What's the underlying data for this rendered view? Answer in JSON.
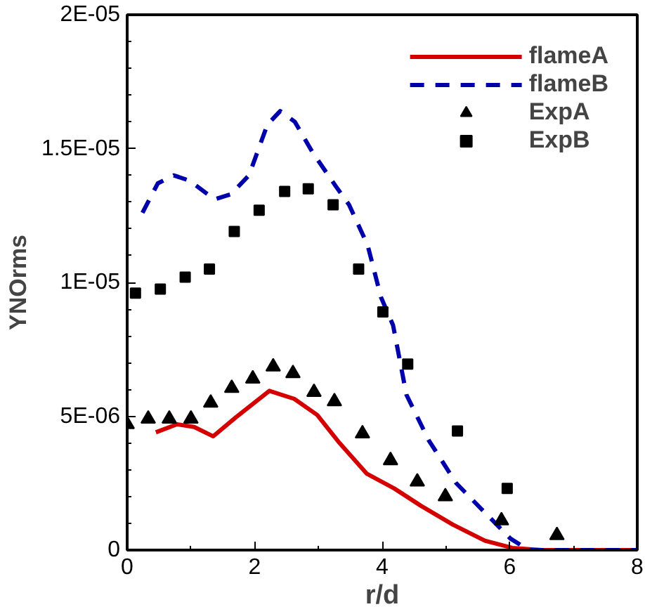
{
  "chart_data": {
    "type": "line",
    "xlabel": "r/d",
    "ylabel": "YNOrms",
    "xlim": [
      0,
      8
    ],
    "ylim": [
      0,
      2e-05
    ],
    "xticks": [
      0,
      {
        "value": 1,
        "label": null
      },
      2,
      {
        "value": 3,
        "label": null
      },
      4,
      {
        "value": 5,
        "label": null
      },
      6,
      {
        "value": 7,
        "label": null
      },
      8
    ],
    "yticks": [
      0,
      {
        "value": 1e-06,
        "label": null
      },
      {
        "value": 2e-06,
        "label": null
      },
      {
        "value": 3e-06,
        "label": null
      },
      {
        "value": 4e-06,
        "label": null
      },
      {
        "value": 5e-06,
        "label": "5E-06"
      },
      {
        "value": 6e-06,
        "label": null
      },
      {
        "value": 7e-06,
        "label": null
      },
      {
        "value": 8e-06,
        "label": null
      },
      {
        "value": 9e-06,
        "label": null
      },
      {
        "value": 1e-05,
        "label": "1E-05"
      },
      {
        "value": 1.1e-05,
        "label": null
      },
      {
        "value": 1.2e-05,
        "label": null
      },
      {
        "value": 1.3e-05,
        "label": null
      },
      {
        "value": 1.4e-05,
        "label": null
      },
      {
        "value": 1.5e-05,
        "label": "1.5E-05"
      },
      {
        "value": 1.6e-05,
        "label": null
      },
      {
        "value": 1.7e-05,
        "label": null
      },
      {
        "value": 1.8e-05,
        "label": null
      },
      {
        "value": 1.9e-05,
        "label": null
      },
      {
        "value": 2e-05,
        "label": "2E-05"
      }
    ],
    "grid": false,
    "legend": "top right",
    "series": [
      {
        "name": "flameA",
        "line_style": "solid",
        "color": "#d40000",
        "x": [
          0.45,
          0.78,
          1.05,
          1.35,
          1.7,
          2.23,
          2.62,
          2.98,
          3.33,
          3.76,
          4.19,
          4.61,
          5.11,
          5.61,
          6.04,
          6.5,
          8
        ],
        "values": [
          4.4e-06,
          4.7e-06,
          4.6e-06,
          4.25e-06,
          4.95e-06,
          5.95e-06,
          5.65e-06,
          5.05e-06,
          4e-06,
          2.85e-06,
          2.3e-06,
          1.65e-06,
          9.5e-07,
          3.5e-07,
          8e-08,
          0,
          0
        ]
      },
      {
        "name": "flameB",
        "line_style": "dashed",
        "color": "#0000aa",
        "x": [
          0.24,
          0.48,
          0.73,
          0.98,
          1.37,
          1.63,
          1.91,
          2.2,
          2.4,
          2.63,
          2.91,
          3.27,
          3.48,
          3.77,
          3.98,
          4.17,
          4.38,
          4.73,
          5.16,
          5.59,
          6.01,
          6.3,
          8
        ],
        "values": [
          1.26e-05,
          1.37e-05,
          1.4e-05,
          1.38e-05,
          1.31e-05,
          1.33e-05,
          1.4e-05,
          1.59e-05,
          1.64e-05,
          1.6e-05,
          1.485e-05,
          1.36e-05,
          1.29e-05,
          1.14e-05,
          9.45e-06,
          8.4e-06,
          5.8e-06,
          4.1e-06,
          2.5e-06,
          1.45e-06,
          4.3e-07,
          0,
          0
        ]
      },
      {
        "name": "ExpA",
        "type": "scatter",
        "marker": "triangle",
        "color": "#000000",
        "x": [
          0,
          0.33,
          0.66,
          1.0,
          1.31,
          1.64,
          1.97,
          2.29,
          2.6,
          2.93,
          3.25,
          3.69,
          4.13,
          4.55,
          4.99,
          5.87,
          6.74
        ],
        "values": [
          4.7e-06,
          4.9e-06,
          4.9e-06,
          4.9e-06,
          5.5e-06,
          6.05e-06,
          6.4e-06,
          6.85e-06,
          6.6e-06,
          5.9e-06,
          5.55e-06,
          4.35e-06,
          3.35e-06,
          2.55e-06,
          2e-06,
          1.1e-06,
          5.5e-07
        ]
      },
      {
        "name": "ExpB",
        "type": "scatter",
        "marker": "square",
        "color": "#000000",
        "x": [
          0.13,
          0.52,
          0.91,
          1.29,
          1.68,
          2.07,
          2.47,
          2.84,
          3.23,
          3.63,
          4.01,
          4.4,
          5.18,
          5.96
        ],
        "values": [
          9.6e-06,
          9.75e-06,
          1.02e-05,
          1.05e-05,
          1.19e-05,
          1.27e-05,
          1.34e-05,
          1.35e-05,
          1.29e-05,
          1.05e-05,
          8.9e-06,
          6.95e-06,
          4.45e-06,
          2.3e-06
        ]
      }
    ]
  }
}
